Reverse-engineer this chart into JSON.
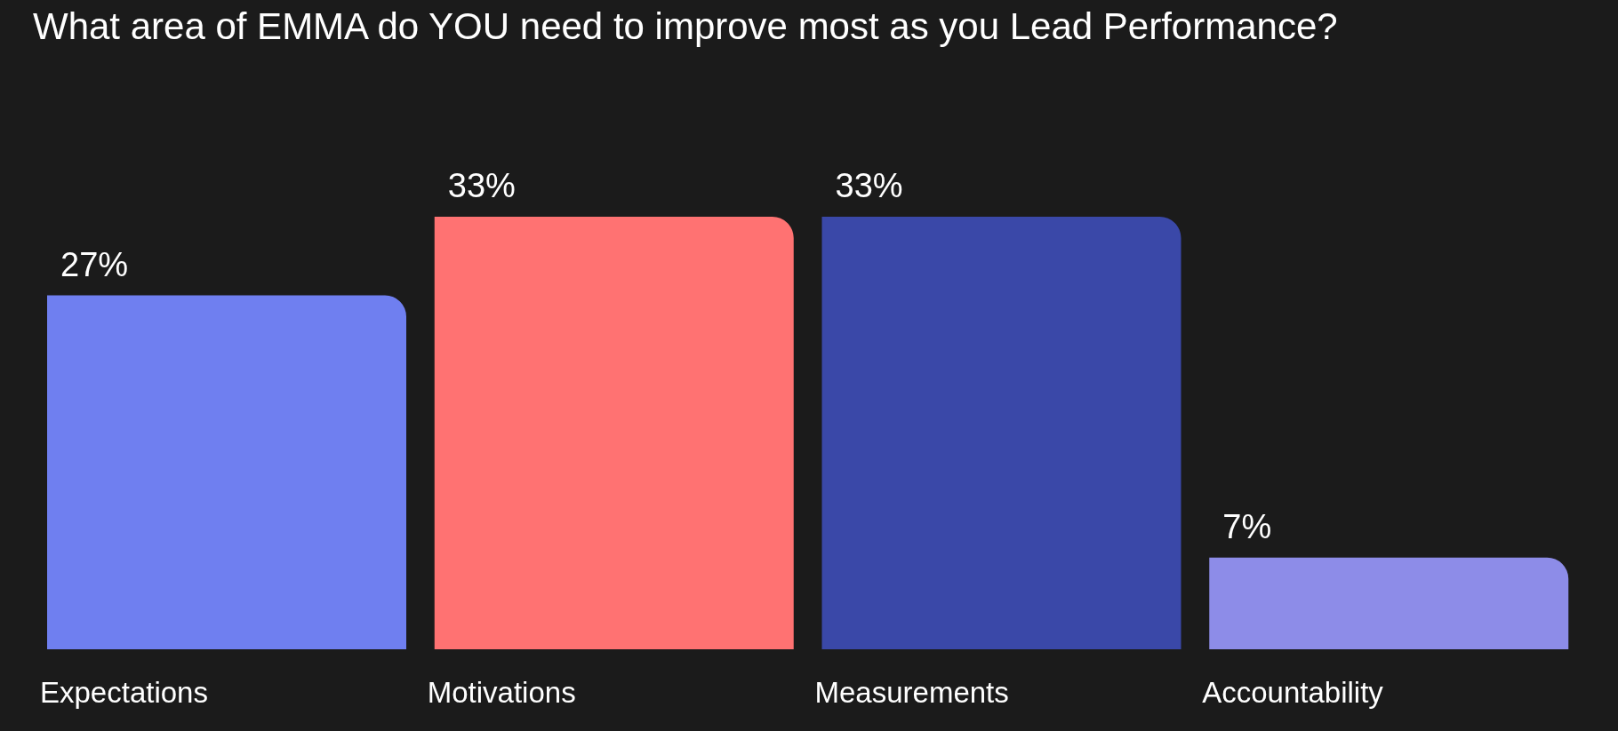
{
  "chart_data": {
    "type": "bar",
    "title": "What area of EMMA do YOU need to improve most as you Lead Performance?",
    "categories": [
      "Expectations",
      "Motivations",
      "Measurements",
      "Accountability"
    ],
    "values": [
      27,
      33,
      33,
      7
    ],
    "value_labels": [
      "27%",
      "33%",
      "33%",
      "7%"
    ],
    "colors": [
      "#6f7ff0",
      "#ff7272",
      "#3a48a8",
      "#8d8ce8"
    ],
    "grid": false,
    "legend": false
  }
}
